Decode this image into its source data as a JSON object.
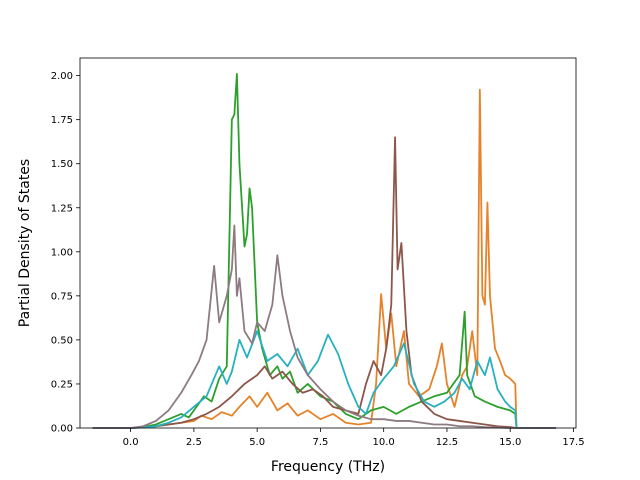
{
  "chart_data": {
    "type": "line",
    "title": "",
    "xlabel": "Frequency (THz)",
    "ylabel": "Partial Density of States",
    "xlim": [
      -2.0,
      17.6
    ],
    "ylim": [
      0.0,
      2.1
    ],
    "xticks": [
      0.0,
      2.5,
      5.0,
      7.5,
      10.0,
      12.5,
      15.0,
      17.5
    ],
    "xtick_labels": [
      "0.0",
      "2.5",
      "5.0",
      "7.5",
      "10.0",
      "12.5",
      "15.0",
      "17.5"
    ],
    "yticks": [
      0.0,
      0.25,
      0.5,
      0.75,
      1.0,
      1.25,
      1.5,
      1.75,
      2.0
    ],
    "ytick_labels": [
      "0.00",
      "0.25",
      "0.50",
      "0.75",
      "1.00",
      "1.25",
      "1.50",
      "1.75",
      "2.00"
    ],
    "grid": false,
    "legend": "none",
    "series": [
      {
        "color": "#e6832a",
        "points": [
          [
            -1.5,
            0
          ],
          [
            0,
            0
          ],
          [
            0.5,
            0.005
          ],
          [
            1,
            0.01
          ],
          [
            1.5,
            0.02
          ],
          [
            2,
            0.03
          ],
          [
            2.5,
            0.04
          ],
          [
            2.8,
            0.07
          ],
          [
            3.2,
            0.05
          ],
          [
            3.6,
            0.09
          ],
          [
            4,
            0.07
          ],
          [
            4.3,
            0.12
          ],
          [
            4.7,
            0.18
          ],
          [
            5,
            0.12
          ],
          [
            5.4,
            0.2
          ],
          [
            5.8,
            0.1
          ],
          [
            6.2,
            0.14
          ],
          [
            6.6,
            0.07
          ],
          [
            7,
            0.1
          ],
          [
            7.5,
            0.05
          ],
          [
            8,
            0.08
          ],
          [
            8.5,
            0.03
          ],
          [
            9,
            0.02
          ],
          [
            9.5,
            0.03
          ],
          [
            9.7,
            0.25
          ],
          [
            9.9,
            0.76
          ],
          [
            10.1,
            0.45
          ],
          [
            10.3,
            0.65
          ],
          [
            10.5,
            0.35
          ],
          [
            10.8,
            0.55
          ],
          [
            11,
            0.25
          ],
          [
            11.4,
            0.18
          ],
          [
            11.8,
            0.22
          ],
          [
            12.1,
            0.35
          ],
          [
            12.3,
            0.48
          ],
          [
            12.5,
            0.25
          ],
          [
            12.8,
            0.12
          ],
          [
            13.1,
            0.3
          ],
          [
            13.3,
            0.35
          ],
          [
            13.5,
            0.55
          ],
          [
            13.7,
            0.3
          ],
          [
            13.8,
            1.92
          ],
          [
            13.9,
            0.75
          ],
          [
            14,
            0.7
          ],
          [
            14.1,
            1.28
          ],
          [
            14.2,
            0.75
          ],
          [
            14.4,
            0.45
          ],
          [
            14.6,
            0.38
          ],
          [
            14.8,
            0.3
          ],
          [
            15,
            0.28
          ],
          [
            15.2,
            0.25
          ],
          [
            15.25,
            0
          ],
          [
            16.8,
            0
          ]
        ]
      },
      {
        "color": "#2ca02c",
        "points": [
          [
            -1.5,
            0
          ],
          [
            0,
            0
          ],
          [
            0.5,
            0.005
          ],
          [
            1,
            0.02
          ],
          [
            1.5,
            0.05
          ],
          [
            2,
            0.08
          ],
          [
            2.3,
            0.06
          ],
          [
            2.6,
            0.12
          ],
          [
            2.9,
            0.18
          ],
          [
            3.2,
            0.15
          ],
          [
            3.5,
            0.28
          ],
          [
            3.8,
            0.35
          ],
          [
            4,
            1.75
          ],
          [
            4.1,
            1.78
          ],
          [
            4.2,
            2.01
          ],
          [
            4.3,
            1.5
          ],
          [
            4.5,
            1.03
          ],
          [
            4.6,
            1.1
          ],
          [
            4.7,
            1.36
          ],
          [
            4.8,
            1.25
          ],
          [
            5,
            0.6
          ],
          [
            5.2,
            0.45
          ],
          [
            5.5,
            0.3
          ],
          [
            5.8,
            0.35
          ],
          [
            6,
            0.28
          ],
          [
            6.3,
            0.32
          ],
          [
            6.6,
            0.2
          ],
          [
            7,
            0.25
          ],
          [
            7.5,
            0.18
          ],
          [
            8,
            0.15
          ],
          [
            8.5,
            0.08
          ],
          [
            9,
            0.05
          ],
          [
            9.5,
            0.1
          ],
          [
            10,
            0.12
          ],
          [
            10.5,
            0.08
          ],
          [
            11,
            0.12
          ],
          [
            11.5,
            0.15
          ],
          [
            12,
            0.18
          ],
          [
            12.5,
            0.2
          ],
          [
            13,
            0.3
          ],
          [
            13.2,
            0.66
          ],
          [
            13.3,
            0.3
          ],
          [
            13.6,
            0.18
          ],
          [
            14,
            0.15
          ],
          [
            14.5,
            0.12
          ],
          [
            15,
            0.1
          ],
          [
            15.2,
            0.08
          ],
          [
            15.25,
            0
          ],
          [
            16.8,
            0
          ]
        ]
      },
      {
        "color": "#8c564b",
        "points": [
          [
            -1.5,
            0
          ],
          [
            0,
            0
          ],
          [
            0.5,
            0.003
          ],
          [
            1,
            0.01
          ],
          [
            1.5,
            0.02
          ],
          [
            2,
            0.03
          ],
          [
            2.5,
            0.05
          ],
          [
            3,
            0.08
          ],
          [
            3.5,
            0.12
          ],
          [
            4,
            0.18
          ],
          [
            4.5,
            0.25
          ],
          [
            5,
            0.3
          ],
          [
            5.3,
            0.35
          ],
          [
            5.6,
            0.28
          ],
          [
            6,
            0.32
          ],
          [
            6.4,
            0.25
          ],
          [
            6.8,
            0.2
          ],
          [
            7.2,
            0.22
          ],
          [
            7.6,
            0.18
          ],
          [
            8,
            0.12
          ],
          [
            8.5,
            0.1
          ],
          [
            9,
            0.08
          ],
          [
            9.3,
            0.25
          ],
          [
            9.6,
            0.38
          ],
          [
            9.9,
            0.3
          ],
          [
            10.1,
            0.45
          ],
          [
            10.3,
            0.7
          ],
          [
            10.45,
            1.65
          ],
          [
            10.55,
            0.9
          ],
          [
            10.7,
            1.05
          ],
          [
            10.9,
            0.55
          ],
          [
            11.1,
            0.3
          ],
          [
            11.5,
            0.15
          ],
          [
            12,
            0.08
          ],
          [
            12.5,
            0.05
          ],
          [
            13,
            0.04
          ],
          [
            13.5,
            0.03
          ],
          [
            14,
            0.02
          ],
          [
            14.5,
            0.01
          ],
          [
            15,
            0.005
          ],
          [
            15.25,
            0
          ],
          [
            16.8,
            0
          ]
        ]
      },
      {
        "color": "#27b1bf",
        "points": [
          [
            -1.5,
            0
          ],
          [
            0,
            0
          ],
          [
            0.5,
            0.003
          ],
          [
            1,
            0.01
          ],
          [
            1.5,
            0.03
          ],
          [
            2,
            0.06
          ],
          [
            2.5,
            0.12
          ],
          [
            3,
            0.18
          ],
          [
            3.5,
            0.35
          ],
          [
            3.8,
            0.25
          ],
          [
            4,
            0.32
          ],
          [
            4.3,
            0.5
          ],
          [
            4.6,
            0.4
          ],
          [
            5,
            0.55
          ],
          [
            5.4,
            0.38
          ],
          [
            5.8,
            0.42
          ],
          [
            6.2,
            0.35
          ],
          [
            6.6,
            0.45
          ],
          [
            7,
            0.3
          ],
          [
            7.4,
            0.38
          ],
          [
            7.8,
            0.53
          ],
          [
            8.2,
            0.42
          ],
          [
            8.6,
            0.25
          ],
          [
            9,
            0.12
          ],
          [
            9.3,
            0.08
          ],
          [
            9.6,
            0.2
          ],
          [
            10,
            0.28
          ],
          [
            10.4,
            0.35
          ],
          [
            10.8,
            0.48
          ],
          [
            11.2,
            0.25
          ],
          [
            11.6,
            0.15
          ],
          [
            12,
            0.12
          ],
          [
            12.4,
            0.15
          ],
          [
            12.8,
            0.2
          ],
          [
            13.1,
            0.28
          ],
          [
            13.4,
            0.22
          ],
          [
            13.7,
            0.38
          ],
          [
            14,
            0.3
          ],
          [
            14.2,
            0.4
          ],
          [
            14.5,
            0.22
          ],
          [
            14.8,
            0.15
          ],
          [
            15,
            0.12
          ],
          [
            15.2,
            0.1
          ],
          [
            15.25,
            0
          ],
          [
            16.8,
            0
          ]
        ]
      },
      {
        "color": "#8e7a82",
        "points": [
          [
            -1.5,
            0
          ],
          [
            0,
            0
          ],
          [
            0.5,
            0.01
          ],
          [
            1,
            0.04
          ],
          [
            1.5,
            0.1
          ],
          [
            2,
            0.2
          ],
          [
            2.4,
            0.3
          ],
          [
            2.7,
            0.38
          ],
          [
            3,
            0.5
          ],
          [
            3.3,
            0.92
          ],
          [
            3.5,
            0.6
          ],
          [
            3.8,
            0.75
          ],
          [
            4,
            0.9
          ],
          [
            4.1,
            1.15
          ],
          [
            4.2,
            0.75
          ],
          [
            4.3,
            0.85
          ],
          [
            4.5,
            0.55
          ],
          [
            4.8,
            0.48
          ],
          [
            5,
            0.6
          ],
          [
            5.3,
            0.55
          ],
          [
            5.6,
            0.7
          ],
          [
            5.8,
            0.98
          ],
          [
            6,
            0.75
          ],
          [
            6.3,
            0.55
          ],
          [
            6.6,
            0.4
          ],
          [
            7,
            0.3
          ],
          [
            7.5,
            0.22
          ],
          [
            8,
            0.15
          ],
          [
            8.5,
            0.1
          ],
          [
            9,
            0.07
          ],
          [
            9.5,
            0.05
          ],
          [
            10,
            0.05
          ],
          [
            10.5,
            0.04
          ],
          [
            11,
            0.04
          ],
          [
            11.5,
            0.03
          ],
          [
            12,
            0.02
          ],
          [
            12.5,
            0.02
          ],
          [
            13,
            0.01
          ],
          [
            13.5,
            0.01
          ],
          [
            14,
            0.005
          ],
          [
            15,
            0
          ],
          [
            16.8,
            0
          ]
        ]
      }
    ]
  }
}
